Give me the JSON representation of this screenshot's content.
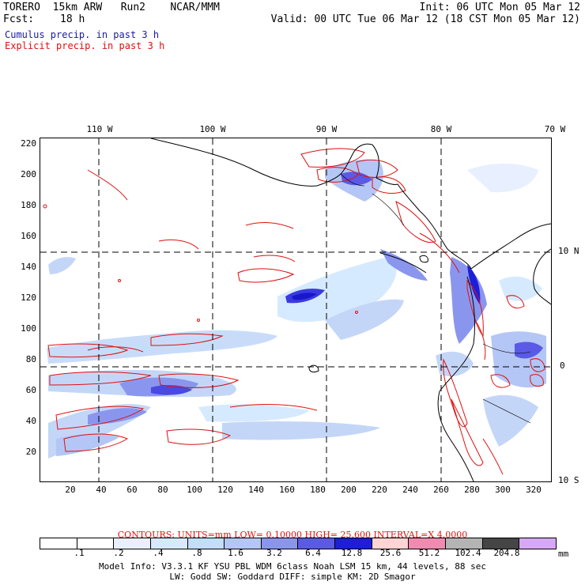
{
  "header": {
    "model": "TORERO  15km ARW   Run2    NCAR/MMM",
    "init": "Init: 06 UTC Mon 05 Mar 12",
    "fcst_label": "Fcst:",
    "fcst_value": "18 h",
    "valid": "Valid: 00 UTC Tue 06 Mar 12 (18 CST Mon 05 Mar 12)",
    "field1": "Cumulus precip. in past 3 h",
    "field2": "Explicit precip. in past 3 h"
  },
  "map": {
    "x_ticks": [
      "20",
      "40",
      "60",
      "80",
      "100",
      "120",
      "140",
      "160",
      "180",
      "200",
      "220",
      "240",
      "260",
      "280",
      "300",
      "320"
    ],
    "y_ticks": [
      "220",
      "200",
      "180",
      "160",
      "140",
      "120",
      "100",
      "80",
      "60",
      "40",
      "20"
    ],
    "lon_labels": [
      "110 W",
      "100 W",
      "90 W",
      "80 W",
      "70 W"
    ],
    "lat_labels": [
      "10 N",
      "0",
      "10 S"
    ]
  },
  "contours_line": "CONTOURS:  UNITS=mm  LOW= 0.10000       HIGH=  25.600       INTERVAL=X  4.0000",
  "legend": {
    "levels": [
      ".1",
      ".2",
      ".4",
      ".8",
      "1.6",
      "3.2",
      "6.4",
      "12.8",
      "25.6",
      "51.2",
      "102.4",
      "204.8"
    ],
    "unit": "mm",
    "colors": [
      "#ffffff",
      "#ffffff",
      "#e8f0ff",
      "#d6eaff",
      "#c4ddfa",
      "#b4c6f5",
      "#8a96ee",
      "#5a5ae6",
      "#1e1ed8",
      "#ffd4d4",
      "#f08ab0",
      "#b4b4b4",
      "#454545",
      "#d7a8f5"
    ]
  },
  "footer": {
    "line1": "Model Info: V3.3.1    KF      YSU PBL   WDM 6class  Noah LSM  15 km,    44 levels,   88 sec",
    "line2": "LW: Godd SW: Goddard DIFF: simple KM: 2D Smagor"
  }
}
